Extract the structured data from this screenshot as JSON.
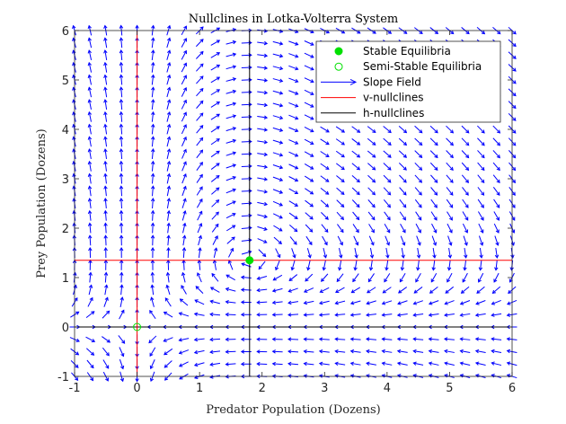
{
  "chart_data": {
    "type": "quiver",
    "title": "Nullclines in Lotka-Volterra System",
    "xlabel": "Predator Population (Dozens)",
    "ylabel": "Prey Population (Dozens)",
    "xlim": [
      -1,
      6
    ],
    "ylim": [
      -1,
      6
    ],
    "xticks": [
      -1,
      0,
      1,
      2,
      3,
      4,
      5,
      6
    ],
    "yticks": [
      -1,
      0,
      1,
      2,
      3,
      4,
      5,
      6
    ],
    "grid": false,
    "legend_position": "top-right",
    "colors": {
      "slope_field": "#0000ff",
      "v_nullclines": "#ff0000",
      "h_nullclines": "#000000",
      "stable_equilibria": "#00e000",
      "semi_stable_equilibria": "#00e000"
    },
    "series": [
      {
        "name": "Stable Equilibria",
        "kind": "marker-filled",
        "points": [
          [
            1.8,
            1.35
          ]
        ]
      },
      {
        "name": "Semi-Stable Equilibria",
        "kind": "marker-open",
        "points": [
          [
            0,
            0
          ]
        ]
      },
      {
        "name": "Slope Field",
        "kind": "quiver",
        "model": {
          "a": 1.35,
          "b": 1.0,
          "c": 1.8,
          "d": 1.0
        },
        "x_range": [
          -1,
          6
        ],
        "x_step": 0.25,
        "y_range": [
          -1,
          6
        ],
        "y_step": 0.25
      },
      {
        "name": "v-nullclines",
        "kind": "lines",
        "lines": [
          {
            "x": 0
          },
          {
            "y": 1.35
          }
        ]
      },
      {
        "name": "h-nullclines",
        "kind": "lines",
        "lines": [
          {
            "x": 1.8
          },
          {
            "y": 0
          }
        ]
      }
    ]
  }
}
